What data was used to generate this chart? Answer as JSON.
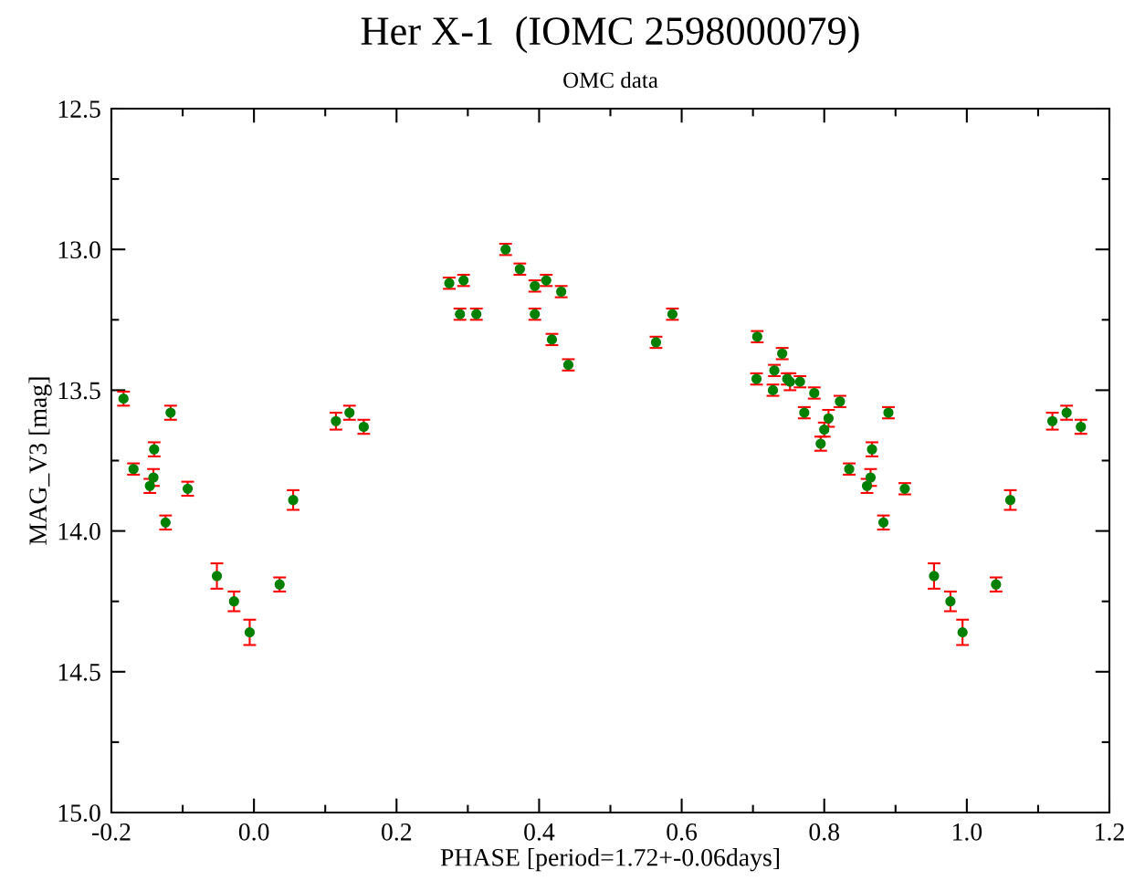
{
  "chart_data": {
    "type": "scatter",
    "title": "Her X-1  (IOMC 2598000079)",
    "subtitle": "OMC data",
    "xlabel": "PHASE [period=1.72+-0.06days]",
    "ylabel": "MAG_V3 [mag]",
    "xlim": [
      -0.2,
      1.2
    ],
    "ylim": [
      15.0,
      12.5
    ],
    "xticks": [
      {
        "value": -0.2,
        "label": "-0.2"
      },
      {
        "value": -0.1,
        "label": null
      },
      {
        "value": 0.0,
        "label": "0.0"
      },
      {
        "value": 0.1,
        "label": null
      },
      {
        "value": 0.2,
        "label": "0.2"
      },
      {
        "value": 0.3,
        "label": null
      },
      {
        "value": 0.4,
        "label": "0.4"
      },
      {
        "value": 0.5,
        "label": null
      },
      {
        "value": 0.6,
        "label": "0.6"
      },
      {
        "value": 0.7,
        "label": null
      },
      {
        "value": 0.8,
        "label": "0.8"
      },
      {
        "value": 0.9,
        "label": null
      },
      {
        "value": 1.0,
        "label": "1.0"
      },
      {
        "value": 1.1,
        "label": null
      },
      {
        "value": 1.2,
        "label": "1.2"
      }
    ],
    "yticks": [
      {
        "value": 12.5,
        "label": "12.5"
      },
      {
        "value": 12.75,
        "label": null
      },
      {
        "value": 13.0,
        "label": "13.0"
      },
      {
        "value": 13.25,
        "label": null
      },
      {
        "value": 13.5,
        "label": "13.5"
      },
      {
        "value": 13.75,
        "label": null
      },
      {
        "value": 14.0,
        "label": "14.0"
      },
      {
        "value": 14.25,
        "label": null
      },
      {
        "value": 14.5,
        "label": "14.5"
      },
      {
        "value": 14.75,
        "label": null
      },
      {
        "value": 15.0,
        "label": "15.0"
      }
    ],
    "marker": "circle",
    "grid": false,
    "series": [
      {
        "color": "#008000",
        "x": [
          -0.183,
          -0.169,
          -0.146,
          -0.141,
          -0.14,
          -0.124,
          -0.117,
          -0.093,
          -0.052,
          -0.028,
          -0.006,
          0.036,
          0.055,
          0.115,
          0.134,
          0.154,
          0.274,
          0.289,
          0.294,
          0.312,
          0.353,
          0.373,
          0.394,
          0.394,
          0.41,
          0.418,
          0.431,
          0.441,
          0.564,
          0.587,
          0.706,
          0.705,
          0.741,
          0.73,
          0.728,
          0.748,
          0.752,
          0.766,
          0.786,
          0.772,
          0.822,
          0.806,
          0.8,
          0.795,
          0.835,
          0.865,
          0.86,
          0.867,
          0.89,
          0.883,
          0.913,
          0.954,
          0.977,
          0.994,
          1.041,
          1.061,
          1.12,
          1.14,
          1.16
        ],
        "values": [
          13.53,
          13.78,
          13.84,
          13.81,
          13.71,
          13.97,
          13.58,
          13.85,
          14.16,
          14.25,
          14.36,
          14.19,
          13.89,
          13.61,
          13.58,
          13.63,
          13.12,
          13.23,
          13.11,
          13.23,
          13.0,
          13.07,
          13.13,
          13.23,
          13.11,
          13.32,
          13.15,
          13.41,
          13.33,
          13.23,
          13.31,
          13.46,
          13.37,
          13.43,
          13.5,
          13.46,
          13.47,
          13.47,
          13.51,
          13.58,
          13.54,
          13.6,
          13.64,
          13.69,
          13.78,
          13.81,
          13.84,
          13.71,
          13.58,
          13.97,
          13.85,
          14.16,
          14.25,
          14.36,
          14.19,
          13.89,
          13.61,
          13.58,
          13.63
        ],
        "errors": [
          0.025,
          0.02,
          0.025,
          0.03,
          0.025,
          0.025,
          0.025,
          0.025,
          0.045,
          0.035,
          0.045,
          0.025,
          0.035,
          0.03,
          0.025,
          0.025,
          0.02,
          0.02,
          0.02,
          0.02,
          0.02,
          0.02,
          0.02,
          0.02,
          0.02,
          0.02,
          0.02,
          0.02,
          0.02,
          0.02,
          0.02,
          0.02,
          0.02,
          0.02,
          0.02,
          0.02,
          0.03,
          0.02,
          0.02,
          0.02,
          0.02,
          0.03,
          0.025,
          0.025,
          0.02,
          0.03,
          0.025,
          0.025,
          0.02,
          0.025,
          0.02,
          0.045,
          0.035,
          0.045,
          0.025,
          0.035,
          0.03,
          0.025,
          0.025
        ]
      }
    ]
  }
}
